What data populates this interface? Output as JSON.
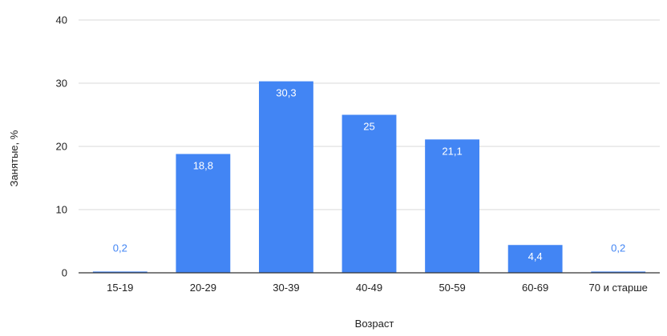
{
  "chart_data": {
    "type": "bar",
    "title": "",
    "xlabel": "Возраст",
    "ylabel": "Занятые, %",
    "ylim": [
      0,
      40
    ],
    "yticks": [
      0,
      10,
      20,
      30,
      40
    ],
    "grid": true,
    "legend": "none",
    "bar_color": "#4285f4",
    "categories": [
      "15-19",
      "20-29",
      "30-39",
      "40-49",
      "50-59",
      "60-69",
      "70 и старше"
    ],
    "values": [
      0.2,
      18.8,
      30.3,
      25,
      21.1,
      4.4,
      0.2
    ],
    "data_labels": [
      "0,2",
      "18,8",
      "30,3",
      "25",
      "21,1",
      "4,4",
      "0,2"
    ]
  }
}
